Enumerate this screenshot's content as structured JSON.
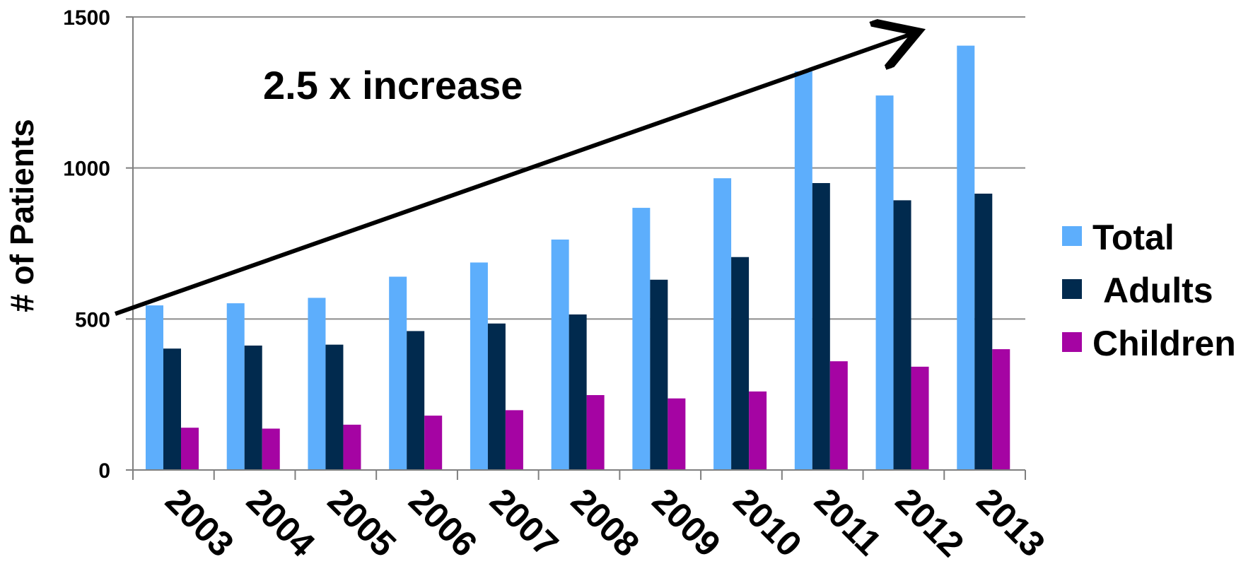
{
  "chart_data": {
    "type": "bar",
    "title": "",
    "xlabel": "",
    "ylabel": "# of Patients",
    "ylim": [
      0,
      1500
    ],
    "yticks": [
      0,
      500,
      1000,
      1500
    ],
    "grid": true,
    "legend_position": "right",
    "categories": [
      "2003",
      "2004",
      "2005",
      "2006",
      "2007",
      "2008",
      "2009",
      "2010",
      "2011",
      "2012",
      "2013"
    ],
    "series": [
      {
        "name": "Total",
        "color": "#5DAEFC",
        "values": [
          545,
          552,
          570,
          640,
          687,
          763,
          868,
          966,
          1320,
          1240,
          1405
        ]
      },
      {
        "name": "Adults",
        "color": "#012A4E",
        "values": [
          402,
          412,
          415,
          460,
          485,
          515,
          630,
          705,
          950,
          893,
          915
        ]
      },
      {
        "name": "Children",
        "color": "#A504A3",
        "values": [
          140,
          137,
          150,
          180,
          198,
          248,
          237,
          260,
          360,
          342,
          400
        ]
      }
    ],
    "annotation": {
      "text": "2.5 x increase",
      "arrow": "trend-up"
    }
  }
}
